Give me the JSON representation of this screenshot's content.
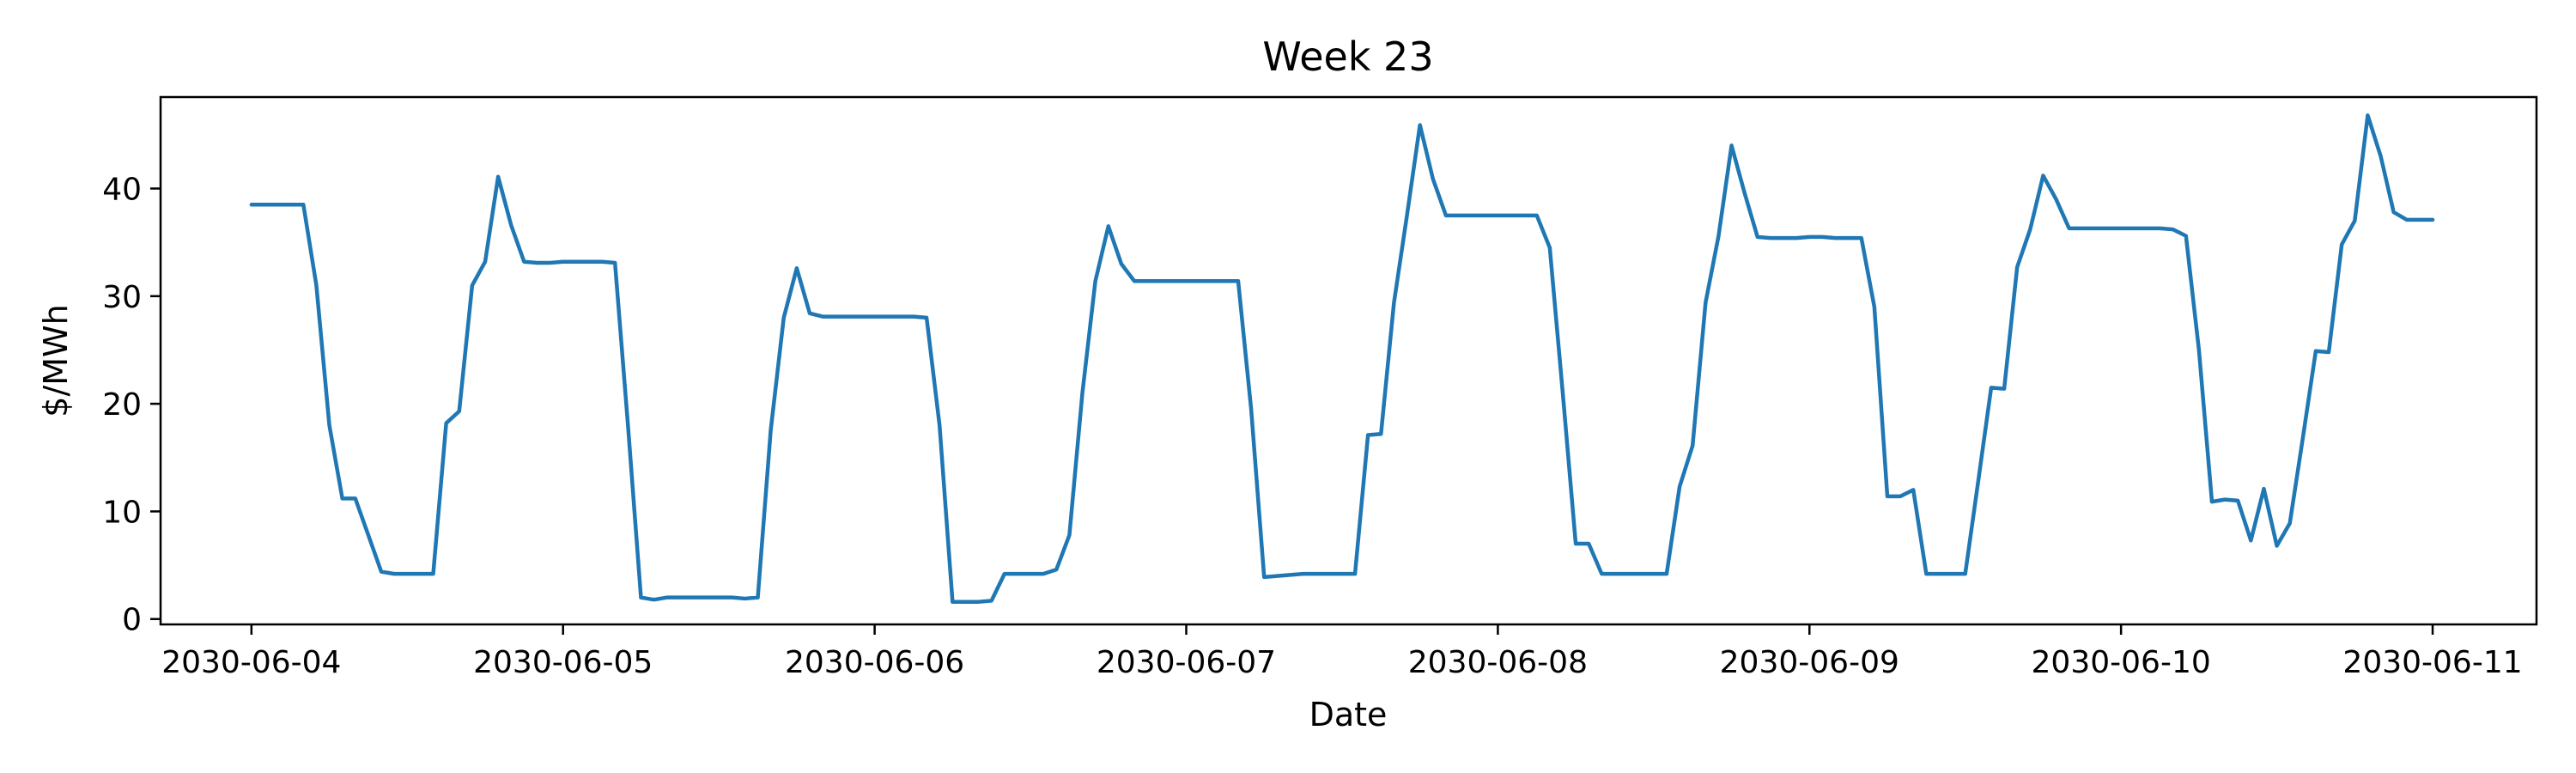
{
  "chart_data": {
    "type": "line",
    "title": "Week 23",
    "xlabel": "Date",
    "ylabel": "$/MWh",
    "x_ticks": [
      "2030-06-04",
      "2030-06-05",
      "2030-06-06",
      "2030-06-07",
      "2030-06-08",
      "2030-06-09",
      "2030-06-10",
      "2030-06-11"
    ],
    "y_ticks": [
      0,
      10,
      20,
      30,
      40
    ],
    "xlim": [
      "2030-06-03 17:00",
      "2030-06-11 08:00"
    ],
    "ylim": [
      -0.5,
      48.5
    ],
    "grid": false,
    "series_color": "#1f77b4",
    "series": [
      {
        "x": [
          "2030-06-04 00:00",
          "2030-06-04 01:00",
          "2030-06-04 02:00",
          "2030-06-04 03:00",
          "2030-06-04 04:00",
          "2030-06-04 05:00",
          "2030-06-04 06:00",
          "2030-06-04 07:00",
          "2030-06-04 08:00",
          "2030-06-04 09:00",
          "2030-06-04 10:00",
          "2030-06-04 11:00",
          "2030-06-04 12:00",
          "2030-06-04 13:00",
          "2030-06-04 14:00",
          "2030-06-04 15:00",
          "2030-06-04 16:00",
          "2030-06-04 17:00",
          "2030-06-04 18:00",
          "2030-06-04 19:00",
          "2030-06-04 20:00",
          "2030-06-04 21:00",
          "2030-06-04 22:00",
          "2030-06-04 23:00",
          "2030-06-05 00:00",
          "2030-06-05 01:00",
          "2030-06-05 02:00",
          "2030-06-05 03:00",
          "2030-06-05 04:00",
          "2030-06-05 05:00",
          "2030-06-05 06:00",
          "2030-06-05 07:00",
          "2030-06-05 08:00",
          "2030-06-05 09:00",
          "2030-06-05 10:00",
          "2030-06-05 11:00",
          "2030-06-05 12:00",
          "2030-06-05 13:00",
          "2030-06-05 14:00",
          "2030-06-05 15:00",
          "2030-06-05 16:00",
          "2030-06-05 17:00",
          "2030-06-05 18:00",
          "2030-06-05 19:00",
          "2030-06-05 20:00",
          "2030-06-05 21:00",
          "2030-06-05 22:00",
          "2030-06-05 23:00",
          "2030-06-06 00:00",
          "2030-06-06 01:00",
          "2030-06-06 02:00",
          "2030-06-06 03:00",
          "2030-06-06 04:00",
          "2030-06-06 05:00",
          "2030-06-06 06:00",
          "2030-06-06 07:00",
          "2030-06-06 08:00",
          "2030-06-06 09:00",
          "2030-06-06 10:00",
          "2030-06-06 11:00",
          "2030-06-06 12:00",
          "2030-06-06 13:00",
          "2030-06-06 14:00",
          "2030-06-06 15:00",
          "2030-06-06 16:00",
          "2030-06-06 17:00",
          "2030-06-06 18:00",
          "2030-06-06 19:00",
          "2030-06-06 20:00",
          "2030-06-06 21:00",
          "2030-06-06 22:00",
          "2030-06-06 23:00",
          "2030-06-07 00:00",
          "2030-06-07 01:00",
          "2030-06-07 02:00",
          "2030-06-07 03:00",
          "2030-06-07 04:00",
          "2030-06-07 05:00",
          "2030-06-07 06:00",
          "2030-06-07 07:00",
          "2030-06-07 08:00",
          "2030-06-07 09:00",
          "2030-06-07 10:00",
          "2030-06-07 11:00",
          "2030-06-07 12:00",
          "2030-06-07 13:00",
          "2030-06-07 14:00",
          "2030-06-07 15:00",
          "2030-06-07 16:00",
          "2030-06-07 17:00",
          "2030-06-07 18:00",
          "2030-06-07 19:00",
          "2030-06-07 20:00",
          "2030-06-07 21:00",
          "2030-06-07 22:00",
          "2030-06-07 23:00",
          "2030-06-08 00:00",
          "2030-06-08 01:00",
          "2030-06-08 02:00",
          "2030-06-08 03:00",
          "2030-06-08 04:00",
          "2030-06-08 05:00",
          "2030-06-08 06:00",
          "2030-06-08 07:00",
          "2030-06-08 08:00",
          "2030-06-08 09:00",
          "2030-06-08 10:00",
          "2030-06-08 11:00",
          "2030-06-08 12:00",
          "2030-06-08 13:00",
          "2030-06-08 14:00",
          "2030-06-08 15:00",
          "2030-06-08 16:00",
          "2030-06-08 17:00",
          "2030-06-08 18:00",
          "2030-06-08 19:00",
          "2030-06-08 20:00",
          "2030-06-08 21:00",
          "2030-06-08 22:00",
          "2030-06-08 23:00",
          "2030-06-09 00:00",
          "2030-06-09 01:00",
          "2030-06-09 02:00",
          "2030-06-09 03:00",
          "2030-06-09 04:00",
          "2030-06-09 05:00",
          "2030-06-09 06:00",
          "2030-06-09 07:00",
          "2030-06-09 08:00",
          "2030-06-09 09:00",
          "2030-06-09 10:00",
          "2030-06-09 11:00",
          "2030-06-09 12:00",
          "2030-06-09 13:00",
          "2030-06-09 14:00",
          "2030-06-09 15:00",
          "2030-06-09 16:00",
          "2030-06-09 17:00",
          "2030-06-09 18:00",
          "2030-06-09 19:00",
          "2030-06-09 20:00",
          "2030-06-09 21:00",
          "2030-06-09 22:00",
          "2030-06-09 23:00",
          "2030-06-10 00:00",
          "2030-06-10 01:00",
          "2030-06-10 02:00",
          "2030-06-10 03:00",
          "2030-06-10 04:00",
          "2030-06-10 05:00",
          "2030-06-10 06:00",
          "2030-06-10 07:00",
          "2030-06-10 08:00",
          "2030-06-10 09:00",
          "2030-06-10 10:00",
          "2030-06-10 11:00",
          "2030-06-10 12:00",
          "2030-06-10 13:00",
          "2030-06-10 14:00",
          "2030-06-10 15:00",
          "2030-06-10 16:00",
          "2030-06-10 17:00",
          "2030-06-10 18:00",
          "2030-06-10 19:00",
          "2030-06-10 20:00",
          "2030-06-10 21:00",
          "2030-06-10 22:00",
          "2030-06-10 23:00",
          "2030-06-11 00:00"
        ],
        "values": [
          38.5,
          38.5,
          38.5,
          38.5,
          38.5,
          31.0,
          18.0,
          11.2,
          11.2,
          7.8,
          4.4,
          4.2,
          4.2,
          4.2,
          4.2,
          18.2,
          19.3,
          31.0,
          33.2,
          41.1,
          36.6,
          33.2,
          33.1,
          33.1,
          33.2,
          33.2,
          33.2,
          33.2,
          33.1,
          18.0,
          2.0,
          1.8,
          2.0,
          2.0,
          2.0,
          2.0,
          2.0,
          2.0,
          1.9,
          2.0,
          17.6,
          28.0,
          32.6,
          28.4,
          28.1,
          28.1,
          28.1,
          28.1,
          28.1,
          28.1,
          28.1,
          28.1,
          28.0,
          18.0,
          1.6,
          1.6,
          1.6,
          1.7,
          4.2,
          4.2,
          4.2,
          4.2,
          4.6,
          7.8,
          21.0,
          31.4,
          36.5,
          33.0,
          31.4,
          31.4,
          31.4,
          31.4,
          31.4,
          31.4,
          31.4,
          31.4,
          31.4,
          19.5,
          3.9,
          4.0,
          4.1,
          4.2,
          4.2,
          4.2,
          4.2,
          4.2,
          17.1,
          17.2,
          29.4,
          37.5,
          45.9,
          40.9,
          37.5,
          37.5,
          37.5,
          37.5,
          37.5,
          37.5,
          37.5,
          37.5,
          34.5,
          21.0,
          7.0,
          7.0,
          4.2,
          4.2,
          4.2,
          4.2,
          4.2,
          4.2,
          12.3,
          16.1,
          29.4,
          35.6,
          44.0,
          39.6,
          35.5,
          35.4,
          35.4,
          35.4,
          35.5,
          35.5,
          35.4,
          35.4,
          35.4,
          29.0,
          11.4,
          11.4,
          12.0,
          4.2,
          4.2,
          4.2,
          4.2,
          12.8,
          21.5,
          21.4,
          32.7,
          36.2,
          41.2,
          39.0,
          36.3,
          36.3,
          36.3,
          36.3,
          36.3,
          36.3,
          36.3,
          36.3,
          36.2,
          35.6,
          25.0,
          10.9,
          11.1,
          11.0,
          7.3,
          12.1,
          6.8,
          8.9,
          16.8,
          24.9,
          24.8,
          34.8,
          37.0,
          46.8,
          43.0,
          37.8,
          37.1,
          37.1,
          37.1
        ]
      }
    ]
  }
}
